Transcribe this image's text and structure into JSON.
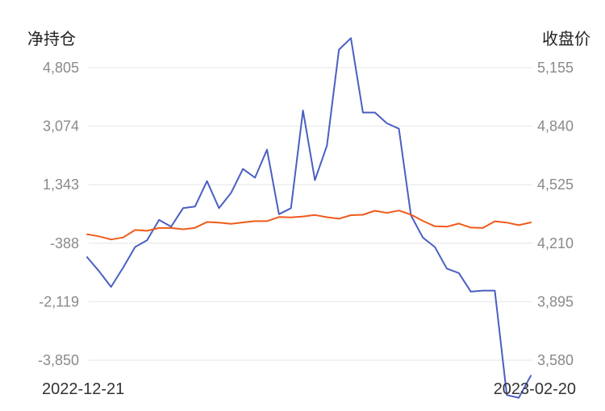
{
  "chart_data": {
    "type": "line",
    "left_axis_title": "净持仓",
    "right_axis_title": "收盘价",
    "left_ticks": [
      "4,805",
      "3,074",
      "1,343",
      "-388",
      "-2,119",
      "-3,850"
    ],
    "right_ticks": [
      "5,155",
      "4,840",
      "4,525",
      "4,210",
      "3,895",
      "3,580"
    ],
    "x_start_label": "2022-12-21",
    "x_end_label": "2023-02-20",
    "left_ylim": [
      -3850,
      4805
    ],
    "right_ylim": [
      3580,
      5155
    ],
    "grid": true,
    "colors": {
      "net_position": "#4a5fc1",
      "close_price": "#f05a1a"
    },
    "series": [
      {
        "axis": "left",
        "values": [
          -800,
          -1220,
          -1680,
          -1110,
          -500,
          -300,
          300,
          100,
          650,
          700,
          1450,
          650,
          1100,
          1810,
          1550,
          2380,
          470,
          650,
          3540,
          1480,
          2500,
          5340,
          5680,
          3480,
          3480,
          3160,
          3000,
          440,
          -220,
          -500,
          -1140,
          -1270,
          -1820,
          -1790,
          -1790,
          -4880,
          -4960,
          -4310
        ]
      },
      {
        "axis": "right",
        "values": [
          4258,
          4247,
          4230,
          4241,
          4281,
          4277,
          4292,
          4292,
          4285,
          4293,
          4324,
          4321,
          4314,
          4322,
          4329,
          4329,
          4351,
          4349,
          4354,
          4362,
          4350,
          4342,
          4361,
          4363,
          4385,
          4373,
          4386,
          4364,
          4330,
          4301,
          4299,
          4316,
          4294,
          4292,
          4328,
          4321,
          4307,
          4322
        ]
      }
    ]
  }
}
